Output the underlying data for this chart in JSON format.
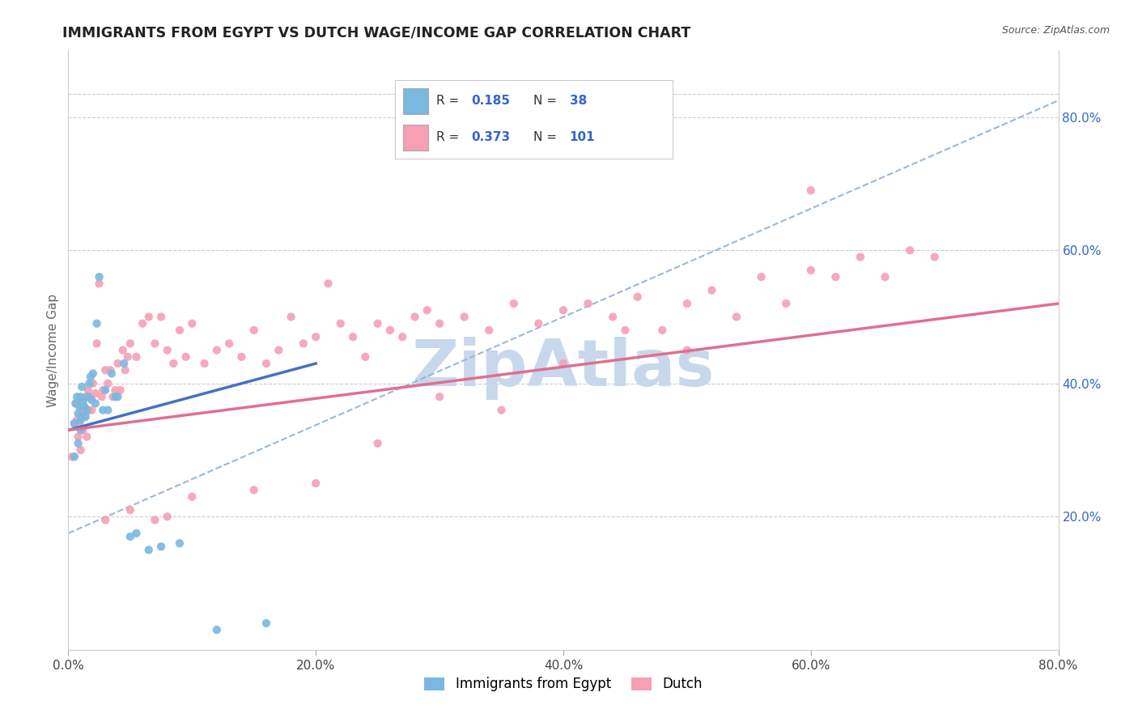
{
  "title": "IMMIGRANTS FROM EGYPT VS DUTCH WAGE/INCOME GAP CORRELATION CHART",
  "source": "Source: ZipAtlas.com",
  "ylabel": "Wage/Income Gap",
  "xlim": [
    0.0,
    0.8
  ],
  "ylim": [
    0.0,
    0.9
  ],
  "ytick_labels": [
    "20.0%",
    "40.0%",
    "60.0%",
    "80.0%"
  ],
  "ytick_vals": [
    0.2,
    0.4,
    0.6,
    0.8
  ],
  "xtick_labels": [
    "0.0%",
    "20.0%",
    "40.0%",
    "60.0%",
    "80.0%"
  ],
  "xtick_vals": [
    0.0,
    0.2,
    0.4,
    0.6,
    0.8
  ],
  "blue_R": 0.185,
  "blue_N": 38,
  "pink_R": 0.373,
  "pink_N": 101,
  "blue_color": "#7ab8e0",
  "pink_color": "#f5a0b5",
  "blue_line_color": "#4472c4",
  "pink_line_color": "#e07090",
  "dash_line_color": "#9ab8d8",
  "background_color": "#ffffff",
  "watermark_color": "#c8d8ec",
  "legend_label_blue": "Immigrants from Egypt",
  "legend_label_pink": "Dutch",
  "blue_line_x0": 0.0,
  "blue_line_y0": 0.33,
  "blue_line_x1": 0.2,
  "blue_line_y1": 0.43,
  "pink_line_x0": 0.0,
  "pink_line_y0": 0.33,
  "pink_line_x1": 0.8,
  "pink_line_y1": 0.52,
  "dash_line_x0": 0.0,
  "dash_line_y0": 0.175,
  "dash_line_x1": 0.8,
  "dash_line_y1": 0.825,
  "blue_scatter_x": [
    0.005,
    0.005,
    0.006,
    0.007,
    0.008,
    0.008,
    0.009,
    0.01,
    0.01,
    0.01,
    0.011,
    0.012,
    0.012,
    0.013,
    0.014,
    0.015,
    0.016,
    0.017,
    0.018,
    0.019,
    0.02,
    0.022,
    0.023,
    0.025,
    0.028,
    0.03,
    0.032,
    0.035,
    0.038,
    0.04,
    0.045,
    0.05,
    0.055,
    0.065,
    0.075,
    0.09,
    0.12,
    0.16
  ],
  "blue_scatter_y": [
    0.34,
    0.29,
    0.37,
    0.38,
    0.355,
    0.31,
    0.365,
    0.38,
    0.345,
    0.33,
    0.395,
    0.375,
    0.35,
    0.365,
    0.35,
    0.36,
    0.38,
    0.4,
    0.41,
    0.375,
    0.415,
    0.37,
    0.49,
    0.56,
    0.36,
    0.39,
    0.36,
    0.415,
    0.38,
    0.38,
    0.43,
    0.17,
    0.175,
    0.15,
    0.155,
    0.16,
    0.03,
    0.04
  ],
  "pink_scatter_x": [
    0.003,
    0.005,
    0.006,
    0.007,
    0.008,
    0.008,
    0.009,
    0.01,
    0.01,
    0.011,
    0.012,
    0.012,
    0.013,
    0.014,
    0.015,
    0.015,
    0.016,
    0.017,
    0.018,
    0.019,
    0.02,
    0.022,
    0.023,
    0.025,
    0.027,
    0.028,
    0.03,
    0.032,
    0.034,
    0.036,
    0.038,
    0.04,
    0.042,
    0.044,
    0.046,
    0.048,
    0.05,
    0.055,
    0.06,
    0.065,
    0.07,
    0.075,
    0.08,
    0.085,
    0.09,
    0.095,
    0.1,
    0.11,
    0.12,
    0.13,
    0.14,
    0.15,
    0.16,
    0.17,
    0.18,
    0.19,
    0.2,
    0.21,
    0.22,
    0.23,
    0.24,
    0.25,
    0.26,
    0.27,
    0.28,
    0.29,
    0.3,
    0.32,
    0.34,
    0.36,
    0.38,
    0.4,
    0.42,
    0.44,
    0.46,
    0.48,
    0.5,
    0.52,
    0.54,
    0.56,
    0.58,
    0.6,
    0.62,
    0.64,
    0.66,
    0.68,
    0.7,
    0.5,
    0.45,
    0.4,
    0.35,
    0.3,
    0.25,
    0.2,
    0.15,
    0.1,
    0.05,
    0.07,
    0.08,
    0.03,
    0.6
  ],
  "pink_scatter_y": [
    0.29,
    0.34,
    0.37,
    0.345,
    0.37,
    0.32,
    0.34,
    0.35,
    0.3,
    0.36,
    0.37,
    0.33,
    0.36,
    0.38,
    0.36,
    0.32,
    0.39,
    0.36,
    0.38,
    0.36,
    0.4,
    0.385,
    0.46,
    0.55,
    0.38,
    0.39,
    0.42,
    0.4,
    0.42,
    0.38,
    0.39,
    0.43,
    0.39,
    0.45,
    0.42,
    0.44,
    0.46,
    0.44,
    0.49,
    0.5,
    0.46,
    0.5,
    0.45,
    0.43,
    0.48,
    0.44,
    0.49,
    0.43,
    0.45,
    0.46,
    0.44,
    0.48,
    0.43,
    0.45,
    0.5,
    0.46,
    0.47,
    0.55,
    0.49,
    0.47,
    0.44,
    0.49,
    0.48,
    0.47,
    0.5,
    0.51,
    0.49,
    0.5,
    0.48,
    0.52,
    0.49,
    0.51,
    0.52,
    0.5,
    0.53,
    0.48,
    0.52,
    0.54,
    0.5,
    0.56,
    0.52,
    0.57,
    0.56,
    0.59,
    0.56,
    0.6,
    0.59,
    0.45,
    0.48,
    0.43,
    0.36,
    0.38,
    0.31,
    0.25,
    0.24,
    0.23,
    0.21,
    0.195,
    0.2,
    0.195,
    0.69
  ]
}
